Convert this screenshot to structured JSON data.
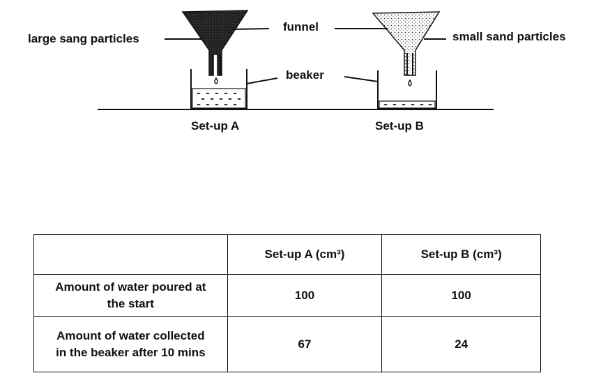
{
  "labels": {
    "large_particles": "large sang particles",
    "funnel": "funnel",
    "small_particles": "small sand particles",
    "beaker": "beaker",
    "setup_a": "Set-up A",
    "setup_b": "Set-up B"
  },
  "table": {
    "header_a": "Set-up A (cm³)",
    "header_b": "Set-up B (cm³)",
    "rows": [
      {
        "label": "Amount of water poured at the start",
        "a": "100",
        "b": "100"
      },
      {
        "label": "Amount of water collected in the beaker after 10 mins",
        "a": "67",
        "b": "24"
      }
    ]
  }
}
